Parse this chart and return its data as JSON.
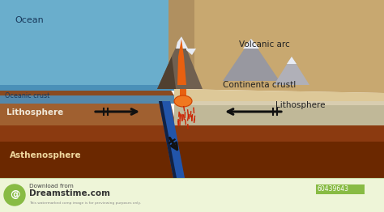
{
  "labels": {
    "ocean": "Ocean",
    "oceanic_crust": "Oceanic crust",
    "volcanic_arc": "Volcanic arc",
    "continental_crust": "Continenta crustl",
    "lithosphere_left": "Lithosphere",
    "lithosphere_right": "Lithosphere",
    "asthenosphere": "Asthenosphere"
  },
  "colors": {
    "ocean_blue": "#6aaecc",
    "ocean_blue_dark": "#4a90b8",
    "oceanic_crust_blue": "#5588aa",
    "left_earth_brown": "#a06030",
    "left_earth_dark": "#8a4a20",
    "right_continental": "#c8a870",
    "right_continental_light": "#ddc898",
    "right_litho_grey": "#c0b898",
    "right_litho_light": "#d8cdb0",
    "asthenosphere_dark": "#6b2800",
    "asthenosphere_med": "#8b3a10",
    "subduct_blue": "#2255aa",
    "subduct_dark": "#112244",
    "lava_orange": "#e86010",
    "lava_red": "#cc2200",
    "magma_orange": "#f07820",
    "volcano_grey": "#706050",
    "volcano_dark": "#504030",
    "snow_white": "#e8ecf4",
    "mountain_grey": "#9898a0",
    "mountain_light": "#b0b0b8",
    "coast_brown": "#b09060",
    "coast_green": "#708050",
    "footer_bg": "#eef5d8",
    "footer_green": "#88bb44",
    "arrow_black": "#111111",
    "text_dark": "#222222",
    "text_blue": "#1a3a5c",
    "text_light": "#f0e8d8"
  },
  "watermark_id": "60439643",
  "figsize": [
    4.74,
    2.62
  ],
  "dpi": 100
}
